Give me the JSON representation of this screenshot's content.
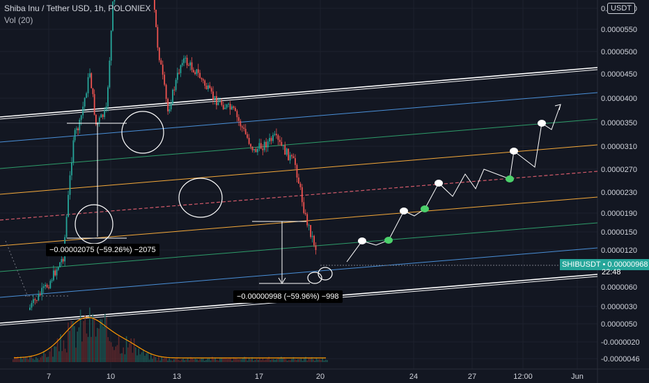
{
  "header": {
    "title": "Shiba Inu / Tether USD, 1h, POLONIEX",
    "volume_label": "Vol (20)"
  },
  "currency_badge": "USDT",
  "last_price": {
    "symbol": "SHIBUSDT",
    "value": "0.00000968",
    "countdown": "22:48",
    "color": "#26a69a"
  },
  "price_axis": [
    "0.0000600",
    "0.0000550",
    "0.0000500",
    "0.0000450",
    "0.0000400",
    "0.0000350",
    "0.0000310",
    "0.0000270",
    "0.0000230",
    "0.0000190",
    "0.0000150",
    "0.0000120",
    "0.0000060",
    "0.0000030",
    "0.0000050",
    "-0.0000020",
    "-0.0000046"
  ],
  "time_axis": [
    "7",
    "10",
    "13",
    "17",
    "20",
    "24",
    "27",
    "12:00",
    "Jun"
  ],
  "measurements": [
    {
      "label": "−0.00002075 (−59.26%) −2075"
    },
    {
      "label": "−0.00000998 (−59.96%) −998"
    }
  ],
  "colors": {
    "background": "#131722",
    "up": "#26a69a",
    "down": "#ef5350",
    "channel_outer": "#ffffff",
    "channel_blue": "#4a90d9",
    "channel_green": "#2e9d6a",
    "channel_orange": "#f5a93a",
    "midline": "#d35a6a",
    "volume_ma": "#ff9800",
    "projection_point": "#ffffff",
    "projection_point_alt": "#4cd16b"
  },
  "chart_data": {
    "type": "candlestick",
    "symbol": "SHIBUSDT",
    "exchange": "POLONIEX",
    "timeframe": "1h",
    "y_axis_unit": "USDT",
    "x_ticks": [
      "7",
      "10",
      "13",
      "17",
      "20",
      "24",
      "27",
      "12:00",
      "Jun"
    ],
    "price_series": [
      {
        "day": 6.0,
        "close": 5e-06
      },
      {
        "day": 7.0,
        "close": 7e-06
      },
      {
        "day": 7.7,
        "close": 9e-06
      },
      {
        "day": 8.2,
        "close": 1.8e-05
      },
      {
        "day": 8.5,
        "close": 1.9e-05
      },
      {
        "day": 9.0,
        "close": 2.3e-05
      },
      {
        "day": 9.3,
        "close": 1.9e-05
      },
      {
        "day": 9.8,
        "close": 2e-05
      },
      {
        "day": 10.2,
        "close": 3e-05
      },
      {
        "day": 10.6,
        "close": 3.6e-05
      },
      {
        "day": 11.0,
        "close": 3.5e-05
      },
      {
        "day": 11.5,
        "close": 3.3e-05
      },
      {
        "day": 12.0,
        "close": 3e-05
      },
      {
        "day": 12.3,
        "close": 2.5e-05
      },
      {
        "day": 12.8,
        "close": 2e-05
      },
      {
        "day": 13.5,
        "close": 2.4e-05
      },
      {
        "day": 14.2,
        "close": 2.3e-05
      },
      {
        "day": 15.0,
        "close": 2.1e-05
      },
      {
        "day": 16.0,
        "close": 2e-05
      },
      {
        "day": 17.0,
        "close": 1.7e-05
      },
      {
        "day": 18.0,
        "close": 1.8e-05
      },
      {
        "day": 19.0,
        "close": 1.6e-05
      },
      {
        "day": 19.5,
        "close": 1.2e-05
      },
      {
        "day": 20.0,
        "close": 9.68e-06
      }
    ],
    "projection": [
      {
        "day": 21.3,
        "price": 1.15e-05
      },
      {
        "day": 22.2,
        "price": 1.4e-05
      },
      {
        "day": 22.8,
        "price": 1.35e-05
      },
      {
        "day": 23.5,
        "price": 1.6e-05
      },
      {
        "day": 24.3,
        "price": 1.8e-05
      },
      {
        "day": 25.0,
        "price": 1.8e-05
      },
      {
        "day": 25.8,
        "price": 2.15e-05
      },
      {
        "day": 27.0,
        "price": 2.2e-05
      },
      {
        "day": 28.0,
        "price": 2.4e-05
      },
      {
        "day": 29.2,
        "price": 2.4e-05
      },
      {
        "day": 29.8,
        "price": 2.8e-05
      },
      {
        "day": 30.5,
        "price": 2.6e-05
      },
      {
        "day": 31.2,
        "price": 3.2e-05
      },
      {
        "day": 31.7,
        "price": 3.1e-05
      },
      {
        "day": 32.2,
        "price": 3.6e-05
      }
    ],
    "measurements": [
      {
        "from_price": 3.5e-05,
        "to_price": 1.425e-05,
        "change": -2.075e-05,
        "percent": -59.26,
        "ticks": -2075
      },
      {
        "from_price": 1.66e-05,
        "to_price": 6.67e-06,
        "change": -9.98e-06,
        "percent": -59.96,
        "ticks": -998
      }
    ]
  }
}
